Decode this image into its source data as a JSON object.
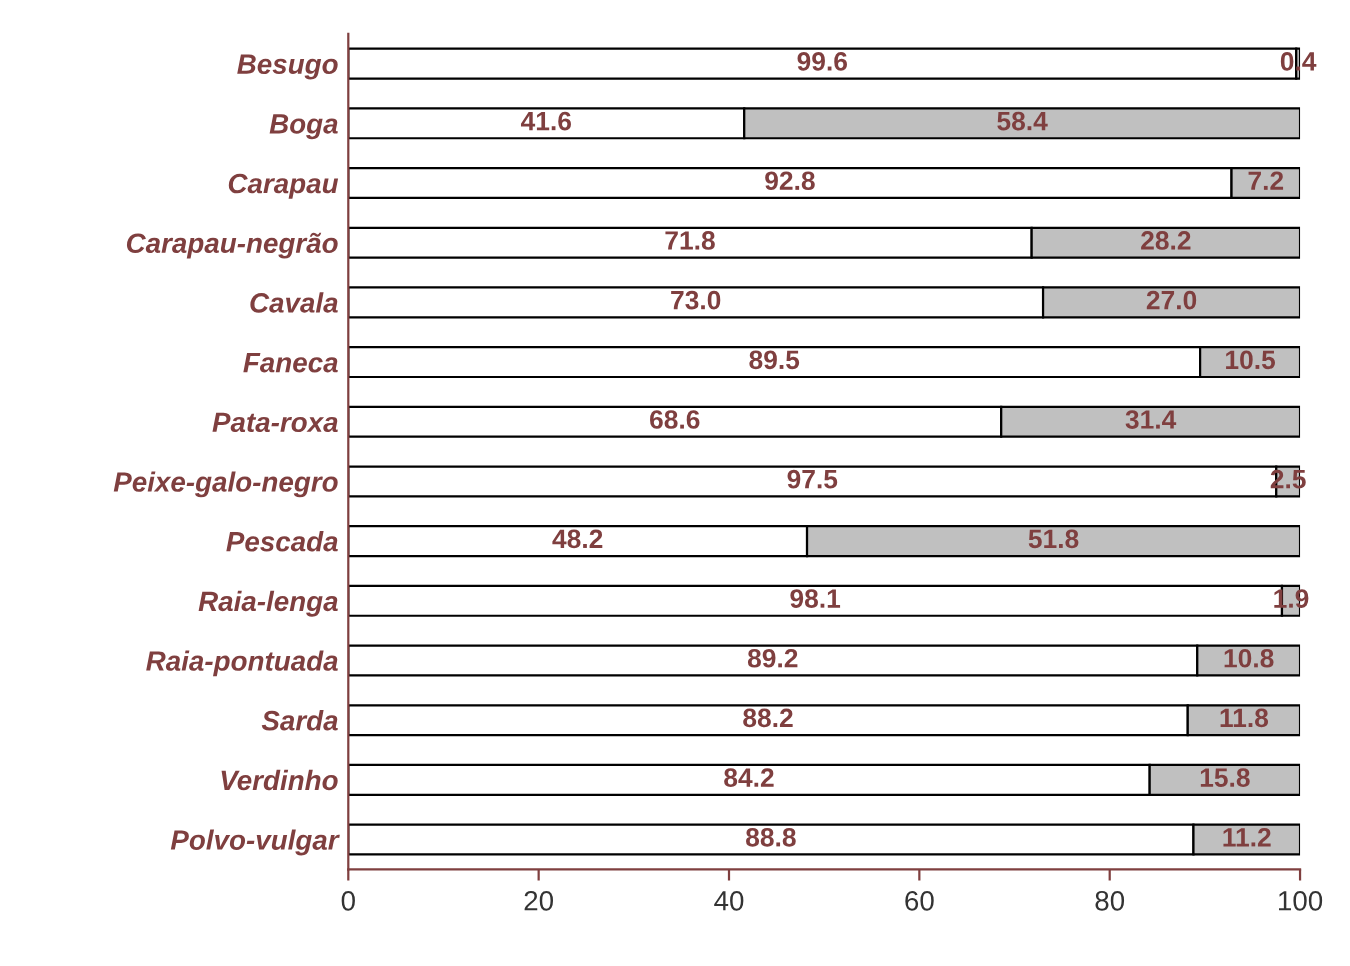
{
  "chart_data": {
    "type": "bar",
    "orientation": "horizontal",
    "stacked": true,
    "categories": [
      "Besugo",
      "Boga",
      "Carapau",
      "Carapau-negrão",
      "Cavala",
      "Faneca",
      "Pata-roxa",
      "Peixe-galo-negro",
      "Pescada",
      "Raia-lenga",
      "Raia-pontuada",
      "Sarda",
      "Verdinho",
      "Polvo-vulgar"
    ],
    "series": [
      {
        "color": "#ffffff",
        "values": [
          99.6,
          41.6,
          92.8,
          71.8,
          73.0,
          89.5,
          68.6,
          97.5,
          48.2,
          98.1,
          89.2,
          88.2,
          84.2,
          88.8
        ],
        "value_labels": [
          "99.6",
          "41.6",
          "92.8",
          "71.8",
          "73.0",
          "89.5",
          "68.6",
          "97.5",
          "48.2",
          "98.1",
          "89.2",
          "88.2",
          "84.2",
          "88.8"
        ]
      },
      {
        "color": "#c0c0c0",
        "values": [
          0.4,
          58.4,
          7.2,
          28.2,
          27.0,
          10.5,
          31.4,
          2.5,
          51.8,
          1.9,
          10.8,
          11.8,
          15.8,
          11.2
        ],
        "value_labels": [
          "0.4",
          "58.4",
          "7.2",
          "28.2",
          "27.0",
          "10.5",
          "31.4",
          "2.5",
          "51.8",
          "1.9",
          "10.8",
          "11.8",
          "15.8",
          "11.2"
        ]
      }
    ],
    "xlim": [
      0,
      100
    ],
    "xticks": [
      0,
      20,
      40,
      60,
      80,
      100
    ],
    "grid": false,
    "legend": false
  }
}
